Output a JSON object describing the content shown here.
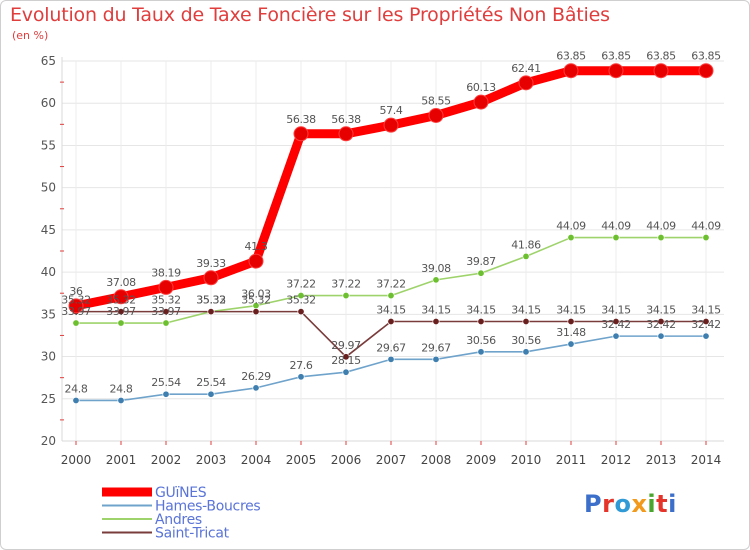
{
  "title": "Evolution du Taux de Taxe Foncière sur les Propriétés Non Bâties",
  "unit_label": "(en %)",
  "logo": {
    "text": "Proxiti",
    "colors": [
      "#3b6fc9",
      "#e5352b",
      "#2f9ad6",
      "#f29a1b",
      "#4aa52c",
      "#e5352b",
      "#3b6fc9"
    ]
  },
  "chart_data": {
    "type": "line",
    "title": "Evolution du Taux de Taxe Foncière sur les Propriétés Non Bâties",
    "ylabel": "(en %)",
    "xlabel": "",
    "ylim": [
      20,
      65
    ],
    "yticks": [
      20,
      25,
      30,
      35,
      40,
      45,
      50,
      55,
      60,
      65
    ],
    "grid": true,
    "legend_position": "bottom-left",
    "categories": [
      "2000",
      "2001",
      "2002",
      "2003",
      "2004",
      "2005",
      "2006",
      "2007",
      "2008",
      "2009",
      "2010",
      "2011",
      "2012",
      "2013",
      "2014"
    ],
    "series": [
      {
        "name": "GUïNES",
        "color": "#ff0000",
        "marker": "#e60000",
        "emphasis": true,
        "values": [
          36,
          37.08,
          38.19,
          39.33,
          41.3,
          56.38,
          56.38,
          57.4,
          58.55,
          60.13,
          62.41,
          63.85,
          63.85,
          63.85,
          63.85
        ],
        "labels": [
          "36",
          "37.08",
          "38.19",
          "39.33",
          "41.3",
          "56.38",
          "56.38",
          "57.4",
          "58.55",
          "60.13",
          "62.41",
          "63.85",
          "63.85",
          "63.85",
          "63.85"
        ]
      },
      {
        "name": "Hames-Boucres",
        "color": "#6fa3cb",
        "marker": "#3f7fb0",
        "emphasis": false,
        "values": [
          24.8,
          24.8,
          25.54,
          25.54,
          26.29,
          27.6,
          28.15,
          29.67,
          29.67,
          30.56,
          30.56,
          31.48,
          32.42,
          32.42,
          32.42
        ],
        "labels": [
          "24.8",
          "24.8",
          "25.54",
          "25.54",
          "26.29",
          "27.6",
          "28.15",
          "29.67",
          "29.67",
          "30.56",
          "30.56",
          "31.48",
          "32.42",
          "32.42",
          "32.42"
        ]
      },
      {
        "name": "Andres",
        "color": "#9ed36b",
        "marker": "#6cbf2e",
        "emphasis": false,
        "values": [
          33.97,
          33.97,
          33.97,
          35.33,
          36.03,
          37.22,
          37.22,
          37.22,
          39.08,
          39.87,
          41.86,
          44.09,
          44.09,
          44.09,
          44.09
        ],
        "labels": [
          "33.97",
          "33.97",
          "33.97",
          "35.33",
          "36.03",
          "37.22",
          "37.22",
          "37.22",
          "39.08",
          "39.87",
          "41.86",
          "44.09",
          "44.09",
          "44.09",
          "44.09"
        ]
      },
      {
        "name": "Saint-Tricat",
        "color": "#7a3b3b",
        "marker": "#6a1f1f",
        "emphasis": false,
        "values": [
          35.32,
          35.32,
          35.32,
          35.32,
          35.32,
          35.32,
          29.97,
          34.15,
          34.15,
          34.15,
          34.15,
          34.15,
          34.15,
          34.15,
          34.15
        ],
        "labels": [
          "35.32",
          "35.32",
          "35.32",
          "35.32",
          "35.32",
          "35.32",
          "29.97",
          "34.15",
          "34.15",
          "34.15",
          "34.15",
          "34.15",
          "34.15",
          "34.15",
          "34.15"
        ]
      }
    ]
  }
}
